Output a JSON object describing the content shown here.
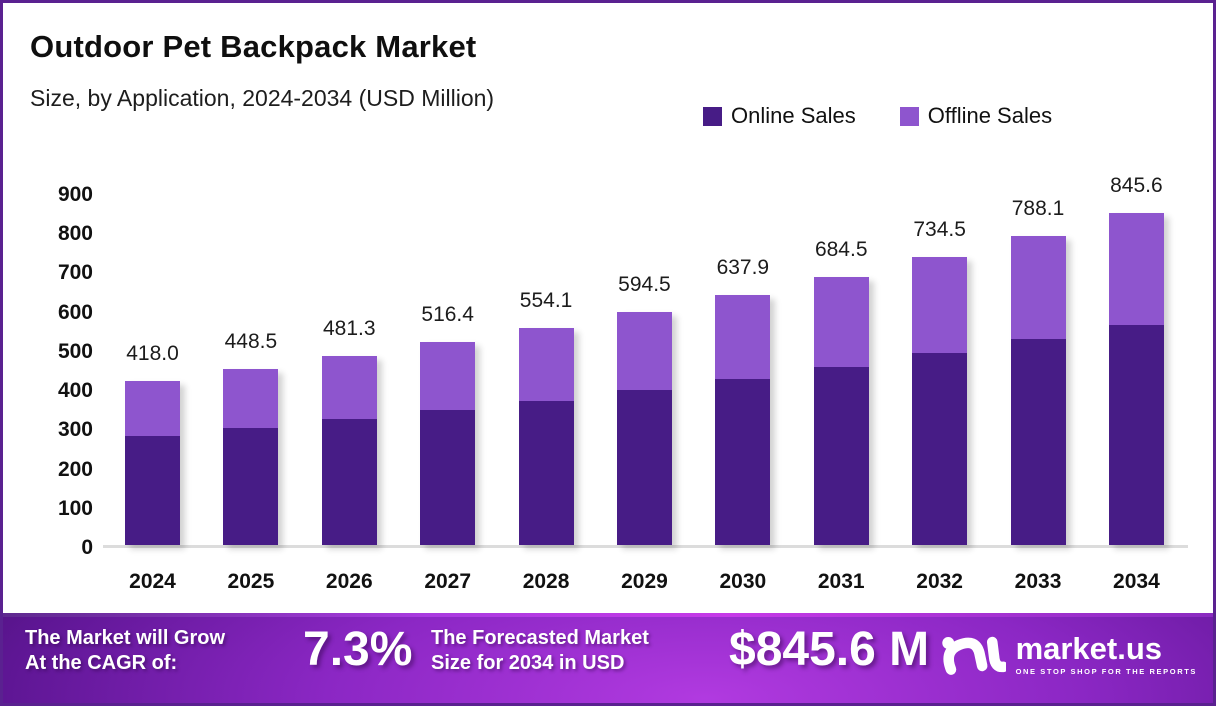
{
  "page": {
    "border_color": "#5a2190",
    "background": "#ffffff"
  },
  "header": {
    "title": "Outdoor Pet Backpack Market",
    "subtitle": "Size, by Application, 2024-2034 (USD Million)"
  },
  "legend": [
    {
      "label": "Online Sales",
      "color": "#471c86"
    },
    {
      "label": "Offline Sales",
      "color": "#8e55ce"
    }
  ],
  "chart_data": {
    "type": "bar",
    "stacked": true,
    "title": "Outdoor Pet Backpack Market Size, by Application, 2024-2034 (USD Million)",
    "categories": [
      "2024",
      "2025",
      "2026",
      "2027",
      "2028",
      "2029",
      "2030",
      "2031",
      "2032",
      "2033",
      "2034"
    ],
    "series": [
      {
        "name": "Online Sales",
        "color": "#471c86",
        "values": [
          278.0,
          298.3,
          320.1,
          343.4,
          368.5,
          395.3,
          424.2,
          455.2,
          488.4,
          524.1,
          562.3
        ]
      },
      {
        "name": "Offline Sales",
        "color": "#8e55ce",
        "values": [
          140.0,
          150.2,
          161.2,
          173.0,
          185.6,
          199.2,
          213.7,
          229.3,
          246.1,
          264.0,
          283.3
        ]
      }
    ],
    "totals": [
      418.0,
      448.5,
      481.3,
      516.4,
      554.1,
      594.5,
      637.9,
      684.5,
      734.5,
      788.1,
      845.6
    ],
    "total_labels": [
      "418.0",
      "448.5",
      "481.3",
      "516.4",
      "554.1",
      "594.5",
      "637.9",
      "684.5",
      "734.5",
      "788.1",
      "845.6"
    ],
    "xlabel": "",
    "ylabel": "",
    "ylim": [
      0,
      900
    ],
    "ytick_step": 100,
    "grid": false,
    "legend_position": "top-right"
  },
  "footer": {
    "cagr_line1": "The Market will Grow",
    "cagr_line2": "At the CAGR of:",
    "cagr_value": "7.3%",
    "forecast_line1": "The Forecasted Market",
    "forecast_line2": "Size for 2034 in USD",
    "forecast_value": "$845.6 M",
    "brand": {
      "name": "market.us",
      "tagline": "ONE STOP SHOP FOR THE REPORTS"
    }
  }
}
